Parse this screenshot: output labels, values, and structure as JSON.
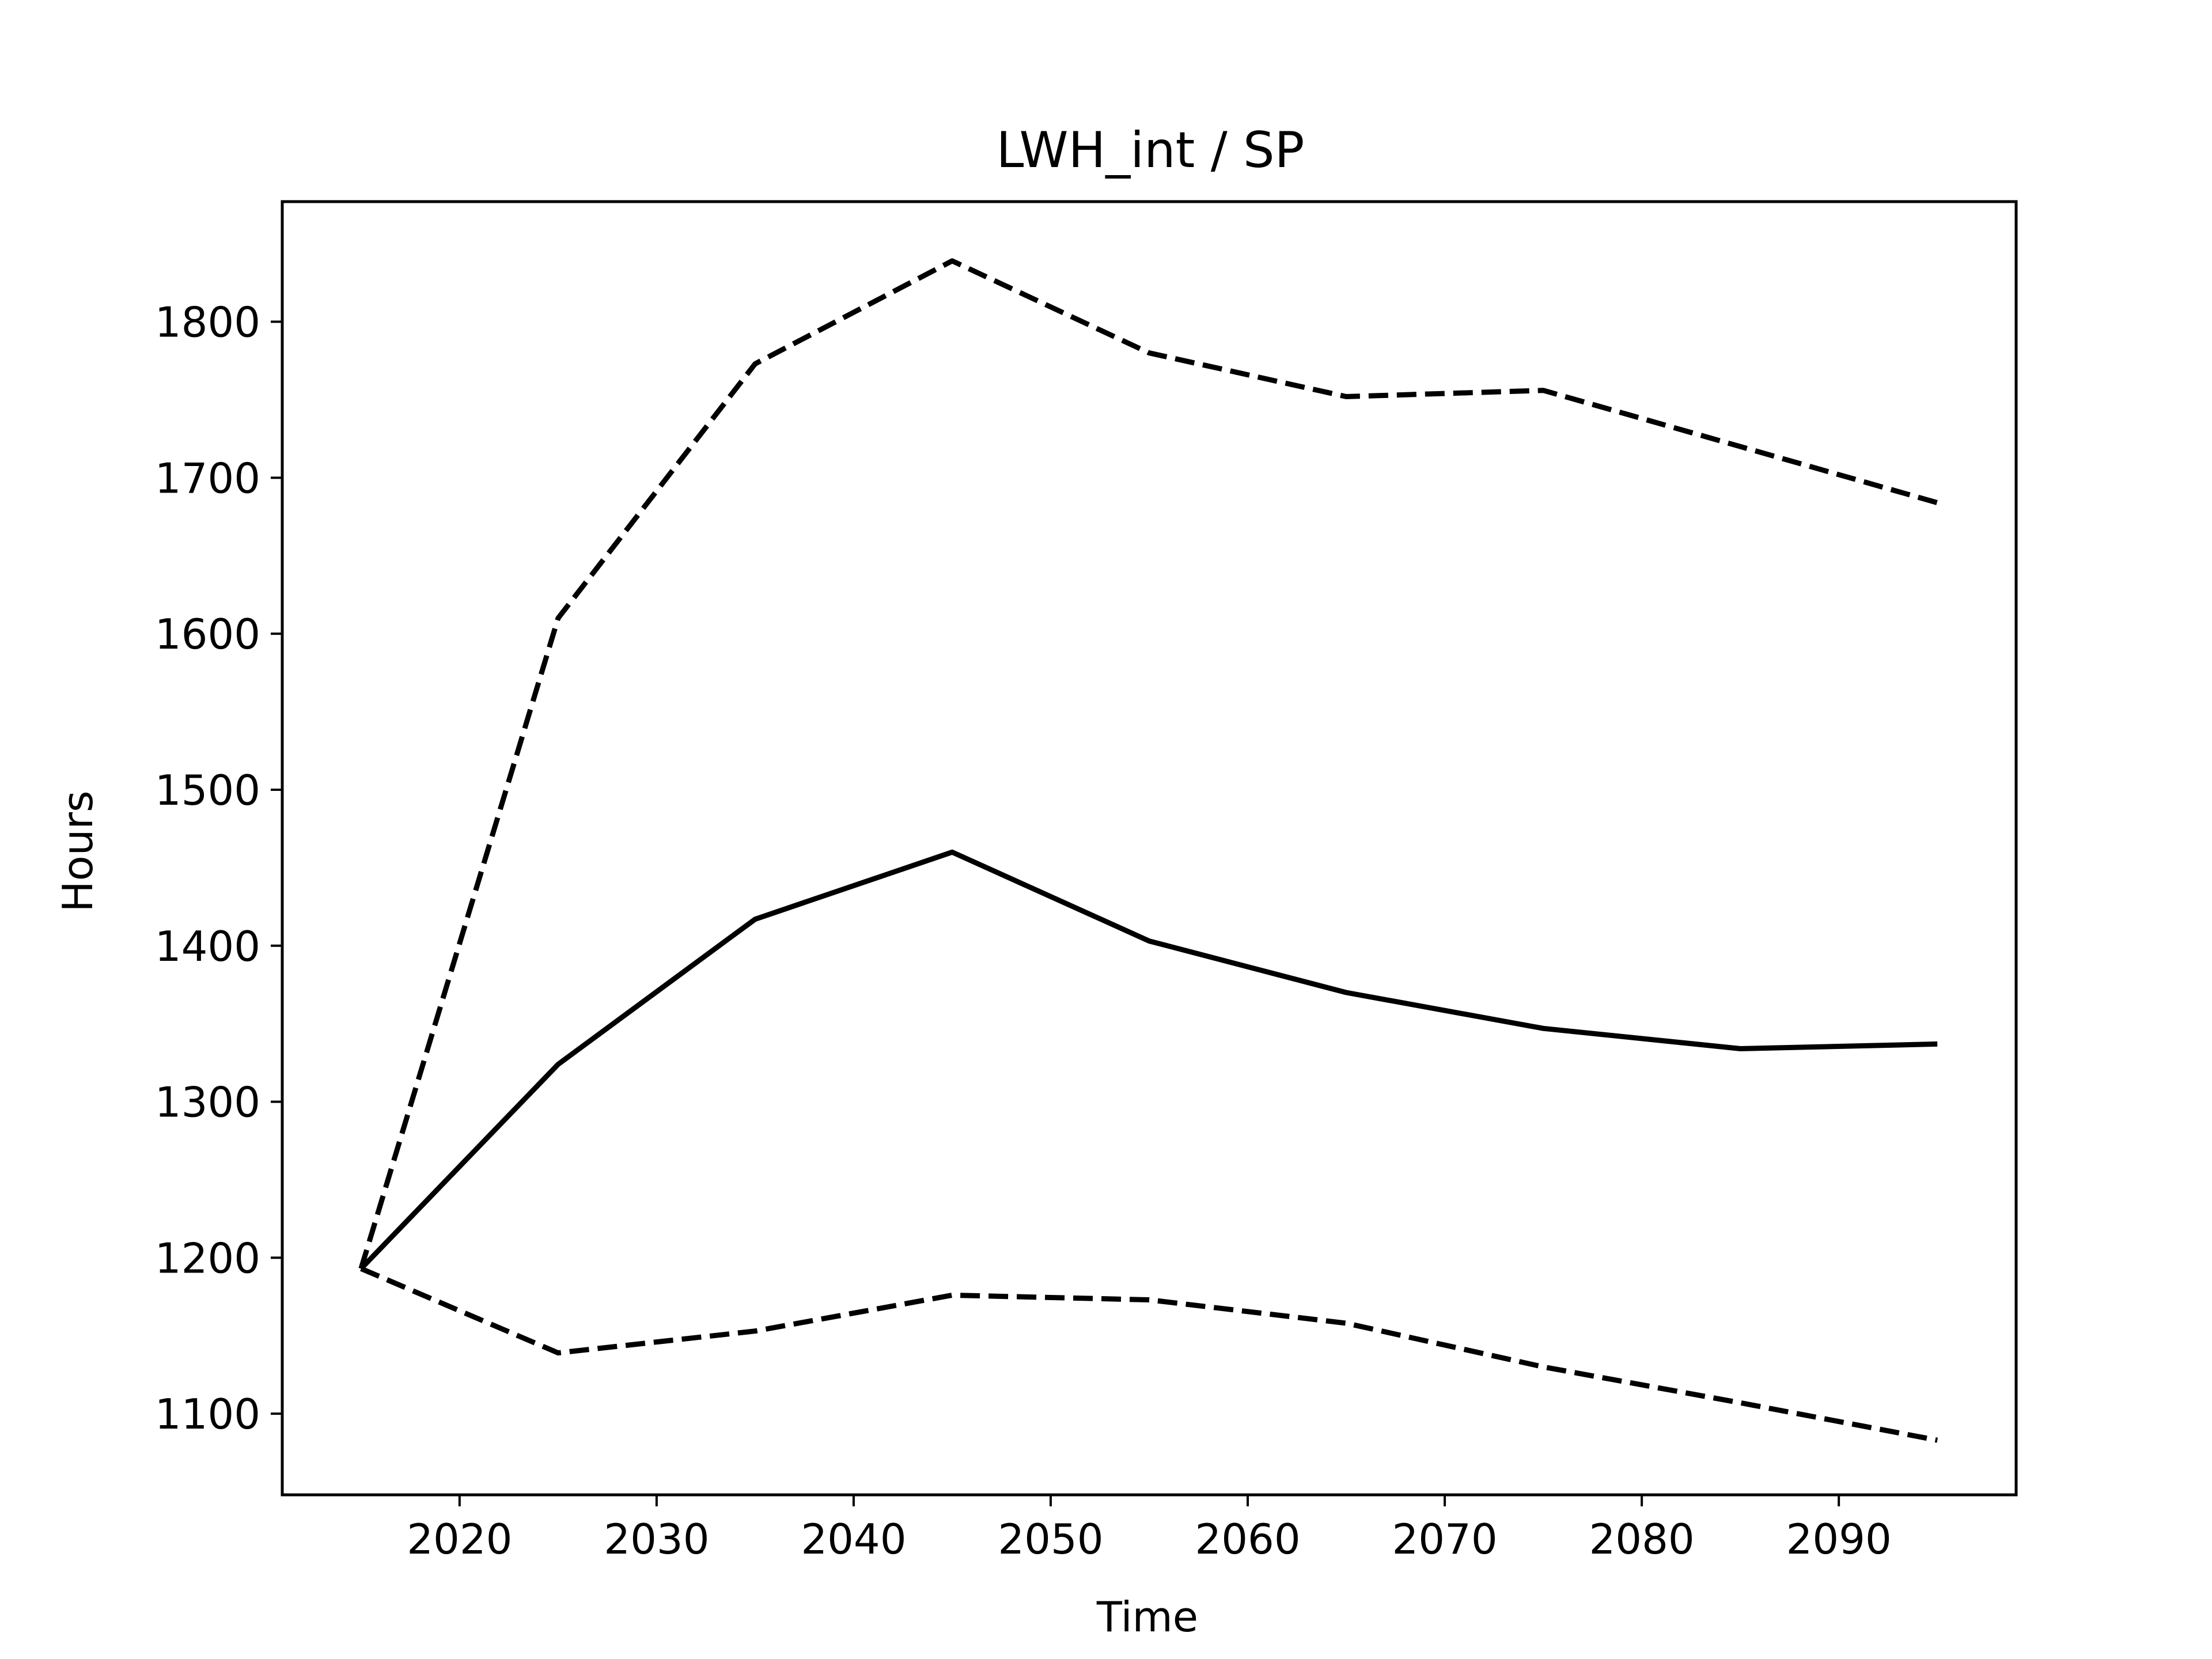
{
  "chart_data": {
    "type": "line",
    "title": "LWH_int / SP",
    "xlabel": "Time",
    "ylabel": "Hours",
    "xlim": [
      2011,
      2099
    ],
    "ylim": [
      1048,
      1877
    ],
    "x_ticks": [
      2020,
      2030,
      2040,
      2050,
      2060,
      2070,
      2080,
      2090
    ],
    "y_ticks": [
      1100,
      1200,
      1300,
      1400,
      1500,
      1600,
      1700,
      1800
    ],
    "grid": false,
    "legend": "none",
    "x": [
      2015,
      2025,
      2035,
      2045,
      2055,
      2065,
      2075,
      2085,
      2095
    ],
    "series": [
      {
        "style": "solid",
        "color": "#000000",
        "values": [
          1193,
          1324,
          1417,
          1460,
          1403,
          1370,
          1347,
          1334,
          1337
        ]
      },
      {
        "style": "dashed",
        "color": "#000000",
        "values": [
          1193,
          1610,
          1773,
          1839,
          1780,
          1752,
          1756,
          1720,
          1684
        ]
      },
      {
        "style": "dashed",
        "color": "#000000",
        "values": [
          1193,
          1139,
          1153,
          1176,
          1173,
          1158,
          1130,
          1107,
          1083
        ]
      }
    ]
  }
}
